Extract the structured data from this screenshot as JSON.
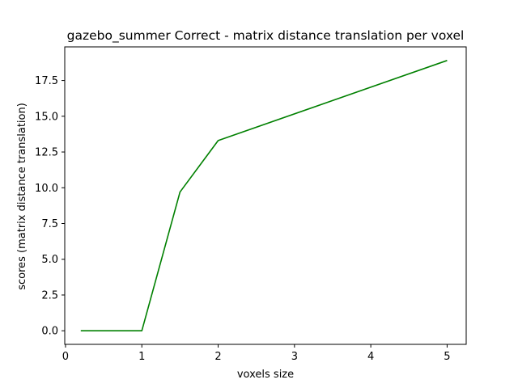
{
  "chart_data": {
    "type": "line",
    "title": "gazebo_summer Correct - matrix distance translation per voxel",
    "xlabel": "voxels size",
    "ylabel": "scores (matrix distance translation)",
    "xlim": [
      -0.01,
      5.25
    ],
    "ylim": [
      -0.95,
      19.85
    ],
    "xticks": [
      0,
      1,
      2,
      3,
      4,
      5
    ],
    "xtick_labels": [
      "0",
      "1",
      "2",
      "3",
      "4",
      "5"
    ],
    "yticks": [
      0,
      2.5,
      5,
      7.5,
      10,
      12.5,
      15,
      17.5
    ],
    "ytick_labels": [
      "0.0",
      "2.5",
      "5.0",
      "7.5",
      "10.0",
      "12.5",
      "15.0",
      "17.5"
    ],
    "grid": false,
    "series": [
      {
        "color": "#008000",
        "x": [
          0.2,
          1.0,
          1.5,
          2.0,
          5.0
        ],
        "y": [
          0.0,
          0.0,
          9.7,
          13.3,
          18.9
        ]
      }
    ]
  }
}
